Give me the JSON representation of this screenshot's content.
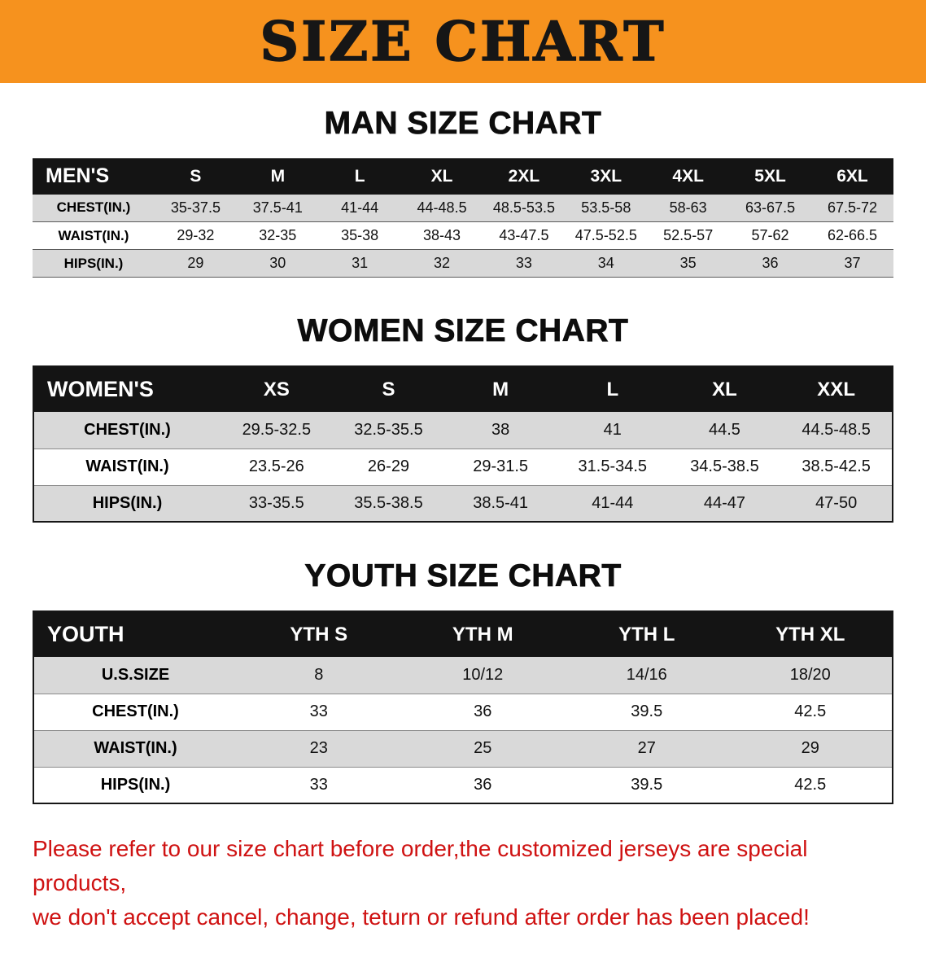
{
  "banner": {
    "title": "SIZE CHART"
  },
  "theme": {
    "banner_bg": "#f6921e",
    "banner_text": "#161616",
    "table_header_bg": "#141414",
    "table_header_text": "#ffffff",
    "row_alt_bg": "#d9d9d9",
    "disclaimer_red": "#cf1212"
  },
  "sections": [
    {
      "heading": "MAN SIZE CHART",
      "table": {
        "header": [
          "MEN'S",
          "S",
          "M",
          "L",
          "XL",
          "2XL",
          "3XL",
          "4XL",
          "5XL",
          "6XL"
        ],
        "rows": [
          [
            "CHEST(IN.)",
            "35-37.5",
            "37.5-41",
            "41-44",
            "44-48.5",
            "48.5-53.5",
            "53.5-58",
            "58-63",
            "63-67.5",
            "67.5-72"
          ],
          [
            "WAIST(IN.)",
            "29-32",
            "32-35",
            "35-38",
            "38-43",
            "43-47.5",
            "47.5-52.5",
            "52.5-57",
            "57-62",
            "62-66.5"
          ],
          [
            "HIPS(IN.)",
            "29",
            "30",
            "31",
            "32",
            "33",
            "34",
            "35",
            "36",
            "37"
          ]
        ]
      }
    },
    {
      "heading": "WOMEN SIZE CHART",
      "table": {
        "header": [
          "WOMEN'S",
          "XS",
          "S",
          "M",
          "L",
          "XL",
          "XXL"
        ],
        "rows": [
          [
            "CHEST(IN.)",
            "29.5-32.5",
            "32.5-35.5",
            "38",
            "41",
            "44.5",
            "44.5-48.5"
          ],
          [
            "WAIST(IN.)",
            "23.5-26",
            "26-29",
            "29-31.5",
            "31.5-34.5",
            "34.5-38.5",
            "38.5-42.5"
          ],
          [
            "HIPS(IN.)",
            "33-35.5",
            "35.5-38.5",
            "38.5-41",
            "41-44",
            "44-47",
            "47-50"
          ]
        ]
      }
    },
    {
      "heading": "YOUTH SIZE CHART",
      "table": {
        "header": [
          "YOUTH",
          "YTH S",
          "YTH M",
          "YTH L",
          "YTH XL"
        ],
        "rows": [
          [
            "U.S.SIZE",
            "8",
            "10/12",
            "14/16",
            "18/20"
          ],
          [
            "CHEST(IN.)",
            "33",
            "36",
            "39.5",
            "42.5"
          ],
          [
            "WAIST(IN.)",
            "23",
            "25",
            "27",
            "29"
          ],
          [
            "HIPS(IN.)",
            "33",
            "36",
            "39.5",
            "42.5"
          ]
        ]
      }
    }
  ],
  "footer": {
    "line1": "Please refer to our size chart before order,the customized jerseys are special products,",
    "line2": "we don't accept cancel, change, teturn or refund after order has been placed!"
  }
}
